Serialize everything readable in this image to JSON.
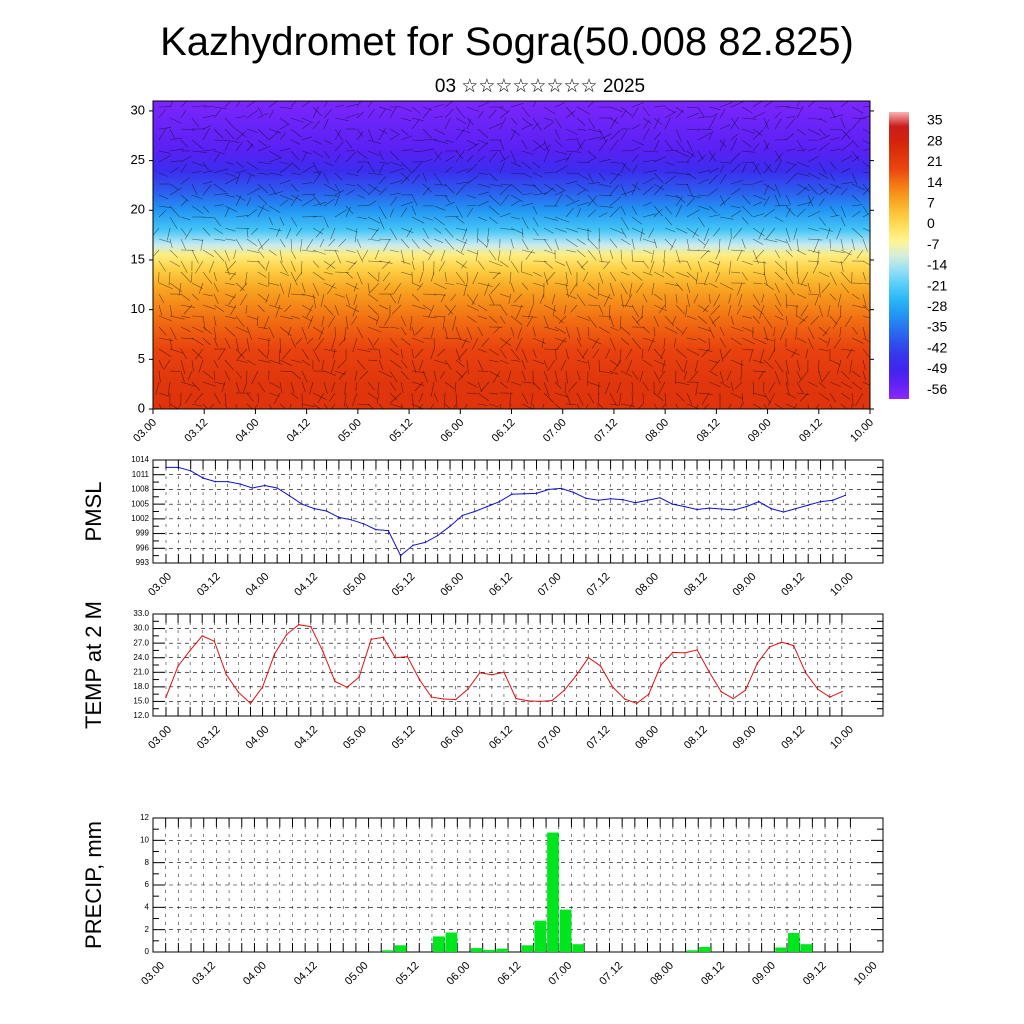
{
  "page": {
    "title": "Kazhydromet for Sogra(50.008 82.825)",
    "subtitle": "03 ☆☆☆☆☆☆☆☆ 2025"
  },
  "chart_data": [
    {
      "type": "heatmap",
      "name": "cross-section",
      "x_ticks": [
        "03.00",
        "03.12",
        "04.00",
        "04.12",
        "05.00",
        "05.12",
        "06.00",
        "06.12",
        "07.00",
        "07.12",
        "08.00",
        "08.12",
        "09.00",
        "09.12",
        "10.00"
      ],
      "y_ticks": [
        0,
        5,
        10,
        15,
        20,
        25,
        30
      ],
      "ylim": [
        0,
        31
      ],
      "colorbar_labels": [
        "35",
        "28",
        "21",
        "14",
        "7",
        "0",
        "-7",
        "-14",
        "-21",
        "-28",
        "-35",
        "-42",
        "-49",
        "-56"
      ],
      "vertical_profile": [
        {
          "y": 0,
          "value": 21
        },
        {
          "y": 3,
          "value": 20
        },
        {
          "y": 6,
          "value": 17
        },
        {
          "y": 9,
          "value": 12
        },
        {
          "y": 12,
          "value": 6
        },
        {
          "y": 14,
          "value": 0
        },
        {
          "y": 15.5,
          "value": -6
        },
        {
          "y": 16.5,
          "value": -14
        },
        {
          "y": 18,
          "value": -24
        },
        {
          "y": 20,
          "value": -32
        },
        {
          "y": 22,
          "value": -40
        },
        {
          "y": 24,
          "value": -48
        },
        {
          "y": 26,
          "value": -54
        },
        {
          "y": 31,
          "value": -58
        }
      ],
      "colors": {
        "warm": "#d42a10",
        "mid": "#fff06a",
        "cold": "#3a2ae0",
        "top": "#8a2aff"
      }
    },
    {
      "type": "line",
      "name": "pmsl",
      "ylabel": "PMSL",
      "ylim": [
        993,
        1014
      ],
      "y_ticks": [
        "1014",
        "1011",
        "1008",
        "1005",
        "1002",
        "999",
        "996",
        "993"
      ],
      "x_ticks": [
        "03.00",
        "03.12",
        "04.00",
        "04.12",
        "05.00",
        "05.12",
        "06.00",
        "06.12",
        "07.00",
        "07.12",
        "08.00",
        "08.12",
        "09.00",
        "09.12",
        "10.00"
      ],
      "color": "#1010d0",
      "values": [
        1012.5,
        1012.5,
        1011.8,
        1010.3,
        1009.6,
        1009.6,
        1009.1,
        1008.3,
        1008.8,
        1008.3,
        1006.7,
        1005.0,
        1004.1,
        1003.6,
        1002.3,
        1001.8,
        1001.0,
        999.8,
        999.6,
        994.5,
        996.6,
        997.2,
        998.6,
        1000.5,
        1002.7,
        1003.5,
        1004.5,
        1005.5,
        1007.0,
        1007.1,
        1007.2,
        1008.0,
        1008.2,
        1007.4,
        1006.2,
        1005.8,
        1006.1,
        1005.9,
        1005.3,
        1005.8,
        1006.3,
        1005.0,
        1004.5,
        1003.9,
        1004.2,
        1004.0,
        1003.8,
        1004.5,
        1005.5,
        1004.1,
        1003.4,
        1004.1,
        1004.8,
        1005.5,
        1005.8,
        1006.8
      ]
    },
    {
      "type": "line",
      "name": "temp2m",
      "ylabel": "TEMP at 2 M",
      "ylim": [
        12,
        33
      ],
      "y_ticks": [
        "33.0",
        "30.0",
        "27.0",
        "24.0",
        "21.0",
        "18.0",
        "15.0",
        "12.0"
      ],
      "x_ticks": [
        "03.00",
        "03.12",
        "04.00",
        "04.12",
        "05.00",
        "05.12",
        "06.00",
        "06.12",
        "07.00",
        "07.12",
        "08.00",
        "08.12",
        "09.00",
        "09.12",
        "10.00"
      ],
      "color": "#e01010",
      "values": [
        15.9,
        22.3,
        25.5,
        28.5,
        27.4,
        20.5,
        16.9,
        14.6,
        18.0,
        24.8,
        28.8,
        30.8,
        30.4,
        25.3,
        19.1,
        17.9,
        20.0,
        27.8,
        28.2,
        24.0,
        24.2,
        19.5,
        15.9,
        15.5,
        15.4,
        17.5,
        20.9,
        20.5,
        21.0,
        15.6,
        15.1,
        15.0,
        15.2,
        17.3,
        20.4,
        24.0,
        22.3,
        18.0,
        15.5,
        14.6,
        16.5,
        22.5,
        25.1,
        25.0,
        25.6,
        21.1,
        17.0,
        15.6,
        17.3,
        22.9,
        26.2,
        27.2,
        26.5,
        20.9,
        17.5,
        15.9,
        17.0
      ]
    },
    {
      "type": "bar",
      "name": "precip",
      "ylabel": "PRECIP, mm",
      "ylim": [
        0,
        12
      ],
      "y_ticks": [
        "12",
        "10",
        "8",
        "6",
        "4",
        "2",
        "0"
      ],
      "x_ticks": [
        "03.00",
        "03.12",
        "04.00",
        "04.12",
        "05.00",
        "05.12",
        "06.00",
        "06.12",
        "07.00",
        "07.12",
        "08.00",
        "08.12",
        "09.00",
        "09.12",
        "10.00"
      ],
      "color": "#00e61e",
      "values": [
        0,
        0,
        0,
        0,
        0,
        0,
        0,
        0,
        0,
        0,
        0,
        0,
        0,
        0,
        0,
        0,
        0,
        0,
        0.15,
        0.6,
        0,
        0,
        1.4,
        1.75,
        0,
        0.35,
        0.2,
        0.3,
        0,
        0.6,
        2.8,
        10.7,
        3.8,
        0.7,
        0,
        0,
        0,
        0,
        0,
        0,
        0,
        0,
        0.15,
        0.45,
        0,
        0,
        0,
        0,
        0,
        0.4,
        1.7,
        0.7,
        0,
        0,
        0,
        0
      ]
    }
  ]
}
